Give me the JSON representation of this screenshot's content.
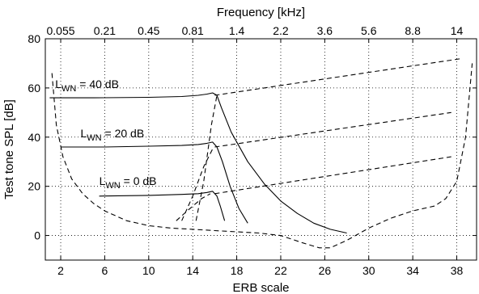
{
  "chart_data": {
    "type": "line",
    "xlabel": "ERB scale",
    "ylabel": "Test tone SPL [dB]",
    "top_axis_label": "Frequency [kHz]",
    "xlim": [
      0.6,
      39.8
    ],
    "ylim": [
      -10,
      80
    ],
    "x_ticks": [
      2,
      6,
      10,
      14,
      18,
      22,
      26,
      30,
      34,
      38
    ],
    "y_ticks": [
      0,
      20,
      40,
      60,
      80
    ],
    "top_ticks": [
      {
        "x": 2,
        "label": "0.055"
      },
      {
        "x": 6,
        "label": "0.21"
      },
      {
        "x": 10,
        "label": "0.45"
      },
      {
        "x": 14,
        "label": "0.81"
      },
      {
        "x": 18,
        "label": "1.4"
      },
      {
        "x": 22,
        "label": "2.2"
      },
      {
        "x": 26,
        "label": "3.6"
      },
      {
        "x": 30,
        "label": "5.6"
      },
      {
        "x": 34,
        "label": "8.8"
      },
      {
        "x": 38,
        "label": "14"
      }
    ],
    "grid": true,
    "series": [
      {
        "style": "dashed",
        "points": [
          [
            1.2,
            66
          ],
          [
            1.6,
            45
          ],
          [
            2.2,
            32
          ],
          [
            3,
            23
          ],
          [
            4,
            17
          ],
          [
            5,
            13
          ],
          [
            6,
            10
          ],
          [
            8,
            6
          ],
          [
            10,
            4
          ],
          [
            12,
            3
          ],
          [
            14,
            2.5
          ],
          [
            16,
            2
          ],
          [
            18,
            1.5
          ],
          [
            20,
            1
          ],
          [
            22,
            0
          ],
          [
            24,
            -3
          ],
          [
            25.5,
            -5
          ],
          [
            26.5,
            -5
          ],
          [
            28,
            -2
          ],
          [
            30,
            3
          ],
          [
            32,
            7
          ],
          [
            34,
            10
          ],
          [
            36,
            12
          ],
          [
            37,
            15
          ],
          [
            38,
            22
          ],
          [
            38.8,
            40
          ],
          [
            39.4,
            70
          ]
        ]
      },
      {
        "style": "dashed",
        "points": [
          [
            16,
            57
          ],
          [
            38.5,
            72
          ]
        ]
      },
      {
        "style": "dashed",
        "points": [
          [
            16,
            36
          ],
          [
            37.5,
            50
          ]
        ]
      },
      {
        "style": "dashed",
        "points": [
          [
            16,
            17
          ],
          [
            37.5,
            32
          ]
        ]
      },
      {
        "style": "dashed",
        "points": [
          [
            14.3,
            6
          ],
          [
            15,
            22
          ],
          [
            15.7,
            45
          ],
          [
            16.2,
            57
          ]
        ]
      },
      {
        "style": "dashed",
        "points": [
          [
            13,
            6
          ],
          [
            14,
            16
          ],
          [
            15,
            28
          ],
          [
            15.9,
            36
          ]
        ]
      },
      {
        "style": "dashed",
        "points": [
          [
            12.5,
            6
          ],
          [
            13.5,
            10
          ],
          [
            14.8,
            15
          ],
          [
            15.6,
            17
          ]
        ]
      },
      {
        "style": "solid",
        "points": [
          [
            1,
            56
          ],
          [
            5,
            56
          ],
          [
            10,
            56.2
          ],
          [
            13,
            56.5
          ],
          [
            14.5,
            57
          ],
          [
            15.3,
            57.5
          ],
          [
            15.8,
            58
          ],
          [
            16.2,
            57
          ],
          [
            16.6,
            52
          ],
          [
            17.5,
            42
          ],
          [
            19,
            30
          ],
          [
            20.5,
            21
          ],
          [
            22,
            14
          ],
          [
            23.5,
            9
          ],
          [
            25,
            5
          ],
          [
            26.5,
            2.5
          ],
          [
            28,
            1
          ]
        ]
      },
      {
        "style": "solid",
        "points": [
          [
            2,
            36
          ],
          [
            6,
            36
          ],
          [
            10,
            36.3
          ],
          [
            13,
            36.6
          ],
          [
            14.5,
            37
          ],
          [
            15.3,
            37.5
          ],
          [
            15.8,
            38
          ],
          [
            16.2,
            36
          ],
          [
            16.7,
            30
          ],
          [
            17.4,
            20
          ],
          [
            18.2,
            11
          ],
          [
            19,
            5
          ]
        ]
      },
      {
        "style": "solid",
        "points": [
          [
            5.5,
            16
          ],
          [
            10,
            16.3
          ],
          [
            13,
            16.7
          ],
          [
            14.5,
            17
          ],
          [
            15.3,
            17.5
          ],
          [
            15.8,
            18
          ],
          [
            16.2,
            16
          ],
          [
            16.5,
            12
          ],
          [
            16.9,
            6
          ]
        ]
      }
    ],
    "annotations": [
      {
        "x": 1.5,
        "y": 60,
        "text": "L",
        "sub": "WN",
        "rest": " = 40 dB"
      },
      {
        "x": 3.8,
        "y": 40,
        "text": "L",
        "sub": "WN",
        "rest": " = 20 dB"
      },
      {
        "x": 5.5,
        "y": 20.5,
        "text": "L",
        "sub": "WN",
        "rest": " = 0 dB"
      }
    ]
  }
}
